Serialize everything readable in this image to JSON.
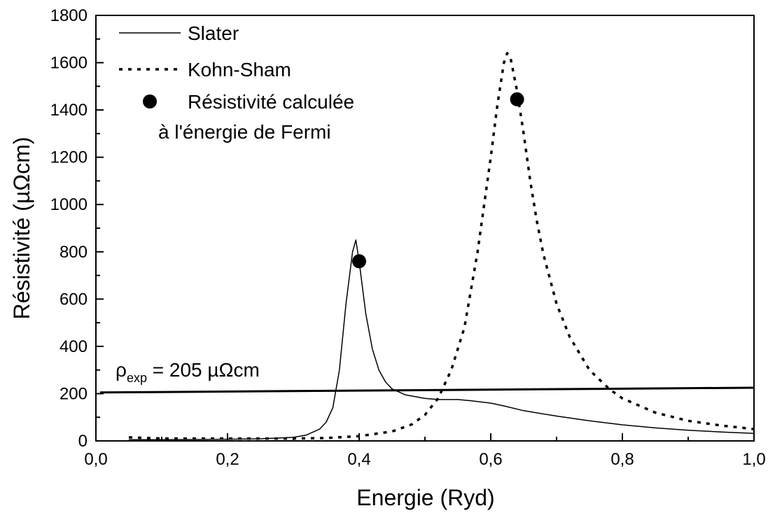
{
  "chart_data": {
    "type": "line",
    "xlabel": "Energie (Ryd)",
    "ylabel": "Résistivité (µΩcm)",
    "xlim": [
      0.0,
      1.0
    ],
    "ylim": [
      0,
      1800
    ],
    "x_ticks": [
      "0,0",
      "0,2",
      "0,4",
      "0,6",
      "0,8",
      "1,0"
    ],
    "y_ticks": [
      "0",
      "200",
      "400",
      "600",
      "800",
      "1000",
      "1200",
      "1400",
      "1600",
      "1800"
    ],
    "grid": false,
    "legend_position": "top-left",
    "series": [
      {
        "name": "Slater",
        "style": "solid",
        "color": "#000000",
        "x": [
          0.05,
          0.1,
          0.15,
          0.2,
          0.25,
          0.3,
          0.32,
          0.34,
          0.35,
          0.36,
          0.37,
          0.38,
          0.39,
          0.395,
          0.4,
          0.41,
          0.42,
          0.43,
          0.44,
          0.45,
          0.47,
          0.5,
          0.52,
          0.55,
          0.57,
          0.6,
          0.62,
          0.65,
          0.7,
          0.75,
          0.8,
          0.85,
          0.9,
          0.95,
          1.0
        ],
        "y": [
          5,
          5,
          6,
          7,
          9,
          15,
          25,
          50,
          80,
          140,
          300,
          580,
          800,
          850,
          760,
          540,
          390,
          300,
          250,
          220,
          195,
          180,
          175,
          175,
          170,
          160,
          148,
          128,
          105,
          85,
          68,
          55,
          45,
          38,
          32
        ]
      },
      {
        "name": "Kohn-Sham",
        "style": "dotted",
        "color": "#000000",
        "x": [
          0.05,
          0.1,
          0.2,
          0.3,
          0.35,
          0.4,
          0.45,
          0.48,
          0.5,
          0.52,
          0.54,
          0.56,
          0.58,
          0.6,
          0.61,
          0.62,
          0.625,
          0.63,
          0.64,
          0.65,
          0.66,
          0.67,
          0.68,
          0.7,
          0.72,
          0.75,
          0.78,
          0.8,
          0.85,
          0.9,
          0.95,
          1.0
        ],
        "y": [
          15,
          10,
          10,
          10,
          12,
          20,
          40,
          70,
          110,
          180,
          300,
          480,
          800,
          1200,
          1420,
          1600,
          1640,
          1620,
          1480,
          1300,
          1100,
          930,
          790,
          580,
          440,
          300,
          220,
          180,
          120,
          85,
          65,
          50
        ]
      },
      {
        "name": "Résistivité calculée",
        "name_line2": "à l'énergie de Fermi",
        "style": "marker",
        "color": "#000000",
        "x": [
          0.4,
          0.64
        ],
        "y": [
          760,
          1445
        ]
      }
    ],
    "reference_line": {
      "label_base": "ρ",
      "label_sub": "exp",
      "label_rest": " = 205 µΩcm",
      "x": [
        0.0,
        1.0
      ],
      "y": [
        205,
        225
      ]
    }
  }
}
